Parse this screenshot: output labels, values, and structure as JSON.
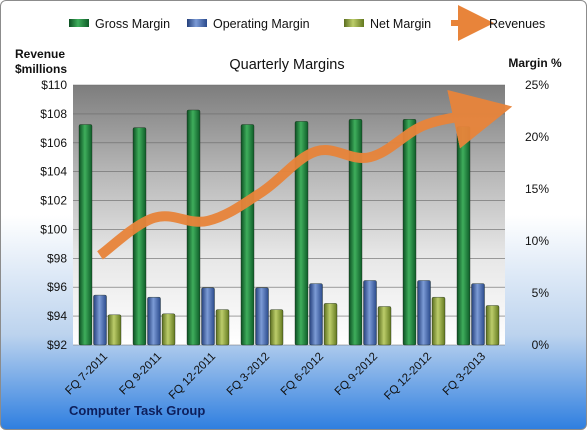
{
  "chart_data": {
    "type": "bar",
    "title": "Quarterly Margins",
    "left_axis_label": [
      "Revenue",
      "$millions"
    ],
    "right_axis_label": "Margin %",
    "footer": "Computer Task Group",
    "categories": [
      "FQ 7-2011",
      "FQ 9-2011",
      "FQ 12-2011",
      "FQ 3-2012",
      "FQ 6-2012",
      "FQ 9-2012",
      "FQ 12-2012",
      "FQ 3-2013"
    ],
    "left_axis": {
      "min": 92,
      "max": 110,
      "step": 2,
      "ticks": [
        "$92",
        "$94",
        "$96",
        "$98",
        "$100",
        "$102",
        "$104",
        "$106",
        "$108",
        "$110"
      ]
    },
    "right_axis": {
      "min": 0,
      "max": 25,
      "step": 5,
      "ticks": [
        "0%",
        "5%",
        "10%",
        "15%",
        "20%",
        "25%"
      ]
    },
    "series": [
      {
        "name": "Gross Margin",
        "type": "bar",
        "axis": "right",
        "color": "#1a7a3a",
        "values": [
          21.2,
          20.9,
          22.6,
          21.2,
          21.5,
          21.7,
          21.7,
          21.0
        ]
      },
      {
        "name": "Operating Margin",
        "type": "bar",
        "axis": "right",
        "color": "#3f62a8",
        "values": [
          4.8,
          4.6,
          5.5,
          5.5,
          5.9,
          6.2,
          6.2,
          5.9
        ]
      },
      {
        "name": "Net Margin",
        "type": "bar",
        "axis": "right",
        "color": "#8da33a",
        "values": [
          2.9,
          3.0,
          3.4,
          3.4,
          4.0,
          3.7,
          4.6,
          3.8
        ]
      },
      {
        "name": "Revenues",
        "type": "line",
        "axis": "left",
        "color": "#e8843a",
        "values": [
          98.2,
          100.8,
          100.6,
          102.6,
          105.4,
          105.0,
          107.2,
          108.0
        ]
      }
    ],
    "grid": true,
    "legend": "top"
  }
}
